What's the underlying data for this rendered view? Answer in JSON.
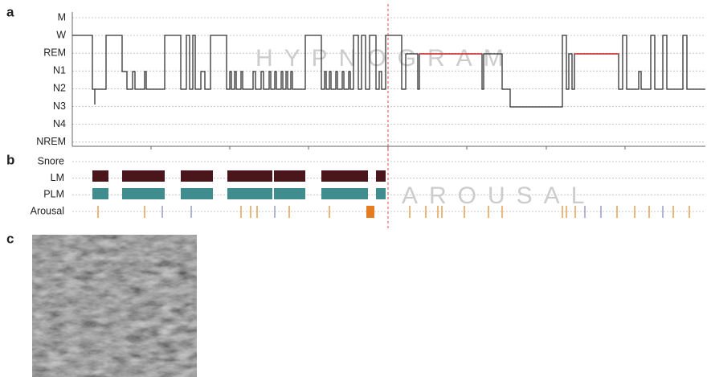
{
  "panels": [
    {
      "label": "a",
      "rows": [
        "M",
        "W",
        "REM",
        "N1",
        "N2",
        "N3",
        "N4",
        "NREM"
      ],
      "watermark": "HYPNOGRAM"
    },
    {
      "label": "b",
      "rows": [
        "Snore",
        "LM",
        "PLM",
        "Arousal"
      ],
      "watermark": "AROUSAL"
    },
    {
      "label": "c"
    }
  ]
}
